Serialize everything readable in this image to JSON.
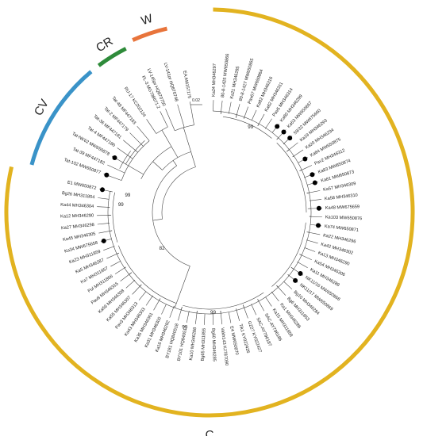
{
  "clades": [
    {
      "id": "C",
      "label": "C",
      "color": "#E2B320"
    },
    {
      "id": "CV",
      "label": "CV",
      "color": "#3A93C8"
    },
    {
      "id": "CR",
      "label": "CR",
      "color": "#2E8B3A"
    },
    {
      "id": "W",
      "label": "W",
      "color": "#E8743B"
    }
  ],
  "scale_bar": "0.02",
  "bootstrap_values": [
    "99",
    "99",
    "99",
    "82",
    "99",
    "99"
  ],
  "leaves_c": [
    {
      "name": "Ka24 MH346297"
    },
    {
      "name": "80-8-1425 MW650866"
    },
    {
      "name": "Ka21 MH346295"
    },
    {
      "name": "80-8-1427 MW650865"
    },
    {
      "name": "Pav67 MW650864"
    },
    {
      "name": "Ka82 MH346316"
    },
    {
      "name": "Ka62 MH346311"
    },
    {
      "name": "Pav5 MH346314"
    },
    {
      "name": "Ka60 MH346299",
      "dot": true
    },
    {
      "name": "Ka53 MW650867",
      "dot": true
    },
    {
      "name": "59/32 MW675660",
      "dot": true
    },
    {
      "name": "Ka19 MH346293"
    },
    {
      "name": "Ka20 MH346294"
    },
    {
      "name": "Ka84 MW650875",
      "dot": true
    },
    {
      "name": "Pav2 MH346312"
    },
    {
      "name": "Ka83 MW650874",
      "dot": true
    },
    {
      "name": "Ka81 MW650873",
      "dot": true
    },
    {
      "name": "Ka57 MH346309"
    },
    {
      "name": "Ka58 MH346310"
    },
    {
      "name": "Ka48 MW675659",
      "dot": true
    },
    {
      "name": "Ka103 MW650876"
    },
    {
      "name": "Ka74 MW650871",
      "dot": true
    },
    {
      "name": "Ka22 MH346296"
    },
    {
      "name": "Ka42 MH346302"
    },
    {
      "name": "Ka13 MH346290"
    },
    {
      "name": "Ka54 MH346306"
    },
    {
      "name": "Ka11 MH346289"
    },
    {
      "name": "NK11/16 MW650868",
      "dot": true
    },
    {
      "name": "NK11/17 MW650869",
      "dot": true
    },
    {
      "name": "Bg10 MH346284"
    },
    {
      "name": "Bg6 MH311853"
    },
    {
      "name": "Ka1 MH346286"
    },
    {
      "name": "Ka15 MH311858"
    },
    {
      "name": "SAC-AY796186"
    },
    {
      "name": "SAC-AY796187"
    },
    {
      "name": "GZ27 KY022427"
    },
    {
      "name": "Tik1 KY022426"
    },
    {
      "name": "E4 MW650870"
    },
    {
      "name": "Vakh143 KJ787090"
    },
    {
      "name": "Bg60 MH346285"
    },
    {
      "name": "Bg65 MH311855"
    },
    {
      "name": "Ka10 MH346288"
    },
    {
      "name": "BY101 HQ840517"
    },
    {
      "name": "BY181 HQ840518"
    },
    {
      "name": "Ka16 MH346292"
    },
    {
      "name": "Ka31 MH346300"
    },
    {
      "name": "Ka35 MH346301"
    },
    {
      "name": "Ka43 MH346303"
    },
    {
      "name": "Pav3 MH346313"
    },
    {
      "name": "Ka55 MH346307"
    },
    {
      "name": "Ka56 MH346308"
    },
    {
      "name": "Pav8 MH346315"
    },
    {
      "name": "Pul MH311856"
    },
    {
      "name": "Ka7 MH311857"
    },
    {
      "name": "Ka5 MH346287"
    },
    {
      "name": "Ka23 MH311859"
    },
    {
      "name": "Ka34 MW675658",
      "dot": true
    },
    {
      "name": "Ka45 MH346305"
    },
    {
      "name": "Ka27 MH346298"
    },
    {
      "name": "Ka12 MH346290"
    },
    {
      "name": "Ka44 MH346304"
    },
    {
      "name": "Bg26 MH311854"
    },
    {
      "name": "E1 MW650872",
      "dot": true
    }
  ],
  "leaves_cv": [
    {
      "name": "Tat-102 MW650877",
      "dot": true
    },
    {
      "name": "Tat-39 MF447182"
    },
    {
      "name": "Tat-NK62 MW650878",
      "dot": true
    },
    {
      "name": "Tat-4 MF447180"
    },
    {
      "name": "Tat-36 MF447181"
    },
    {
      "name": "Tat-2 MF447179"
    },
    {
      "name": "Tat-49 MF447183"
    }
  ],
  "leaves_cr": [
    {
      "name": "RU-17 KC202124"
    },
    {
      "name": "FL-3 MG738671.2"
    }
  ],
  "leaves_w": [
    {
      "name": "LV-145pr HQ870750"
    },
    {
      "name": "LV-141pr HQ870748"
    },
    {
      "name": "EA AM157175"
    }
  ]
}
